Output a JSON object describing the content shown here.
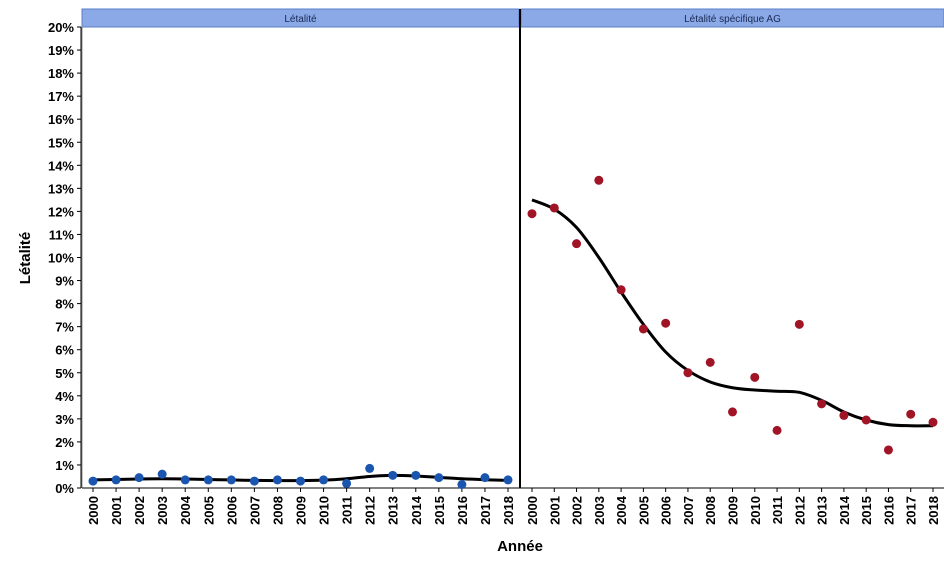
{
  "chart_data": {
    "type": "scatter",
    "ylabel": "Létalité",
    "xlabel": "Année",
    "ylim": [
      0,
      20
    ],
    "y_ticks": [
      "0%",
      "1%",
      "2%",
      "3%",
      "4%",
      "5%",
      "6%",
      "7%",
      "8%",
      "9%",
      "10%",
      "11%",
      "12%",
      "13%",
      "14%",
      "15%",
      "16%",
      "17%",
      "18%",
      "19%",
      "20%"
    ],
    "x_ticks": [
      "2000",
      "2001",
      "2002",
      "2003",
      "2004",
      "2005",
      "2006",
      "2007",
      "2008",
      "2009",
      "2010",
      "2011",
      "2012",
      "2013",
      "2014",
      "2015",
      "2016",
      "2017",
      "2018"
    ],
    "grid": false,
    "panels": [
      {
        "title": "Létalité",
        "point_color": "#1a56b0",
        "x": [
          2000,
          2001,
          2002,
          2003,
          2004,
          2005,
          2006,
          2007,
          2008,
          2009,
          2010,
          2011,
          2012,
          2013,
          2014,
          2015,
          2016,
          2017,
          2018
        ],
        "values": [
          0.3,
          0.35,
          0.45,
          0.6,
          0.35,
          0.35,
          0.35,
          0.3,
          0.35,
          0.3,
          0.35,
          0.2,
          0.85,
          0.55,
          0.55,
          0.45,
          0.15,
          0.45,
          0.35
        ],
        "trend": [
          0.35,
          0.37,
          0.39,
          0.4,
          0.39,
          0.37,
          0.35,
          0.33,
          0.32,
          0.32,
          0.34,
          0.4,
          0.5,
          0.55,
          0.52,
          0.46,
          0.4,
          0.36,
          0.33
        ]
      },
      {
        "title": "Létalité spécifique AG",
        "point_color": "#a01426",
        "x": [
          2000,
          2001,
          2002,
          2003,
          2004,
          2005,
          2006,
          2007,
          2008,
          2009,
          2010,
          2011,
          2012,
          2013,
          2014,
          2015,
          2016,
          2017,
          2018
        ],
        "values": [
          11.9,
          12.15,
          10.6,
          13.35,
          8.6,
          6.9,
          7.15,
          5.0,
          5.45,
          3.3,
          4.8,
          2.5,
          7.1,
          3.65,
          3.15,
          2.95,
          1.65,
          3.2,
          2.85
        ],
        "trend": [
          12.5,
          12.1,
          11.3,
          10.0,
          8.5,
          7.1,
          5.9,
          5.1,
          4.6,
          4.35,
          4.25,
          4.2,
          4.15,
          3.8,
          3.3,
          2.95,
          2.75,
          2.7,
          2.7
        ]
      }
    ]
  }
}
